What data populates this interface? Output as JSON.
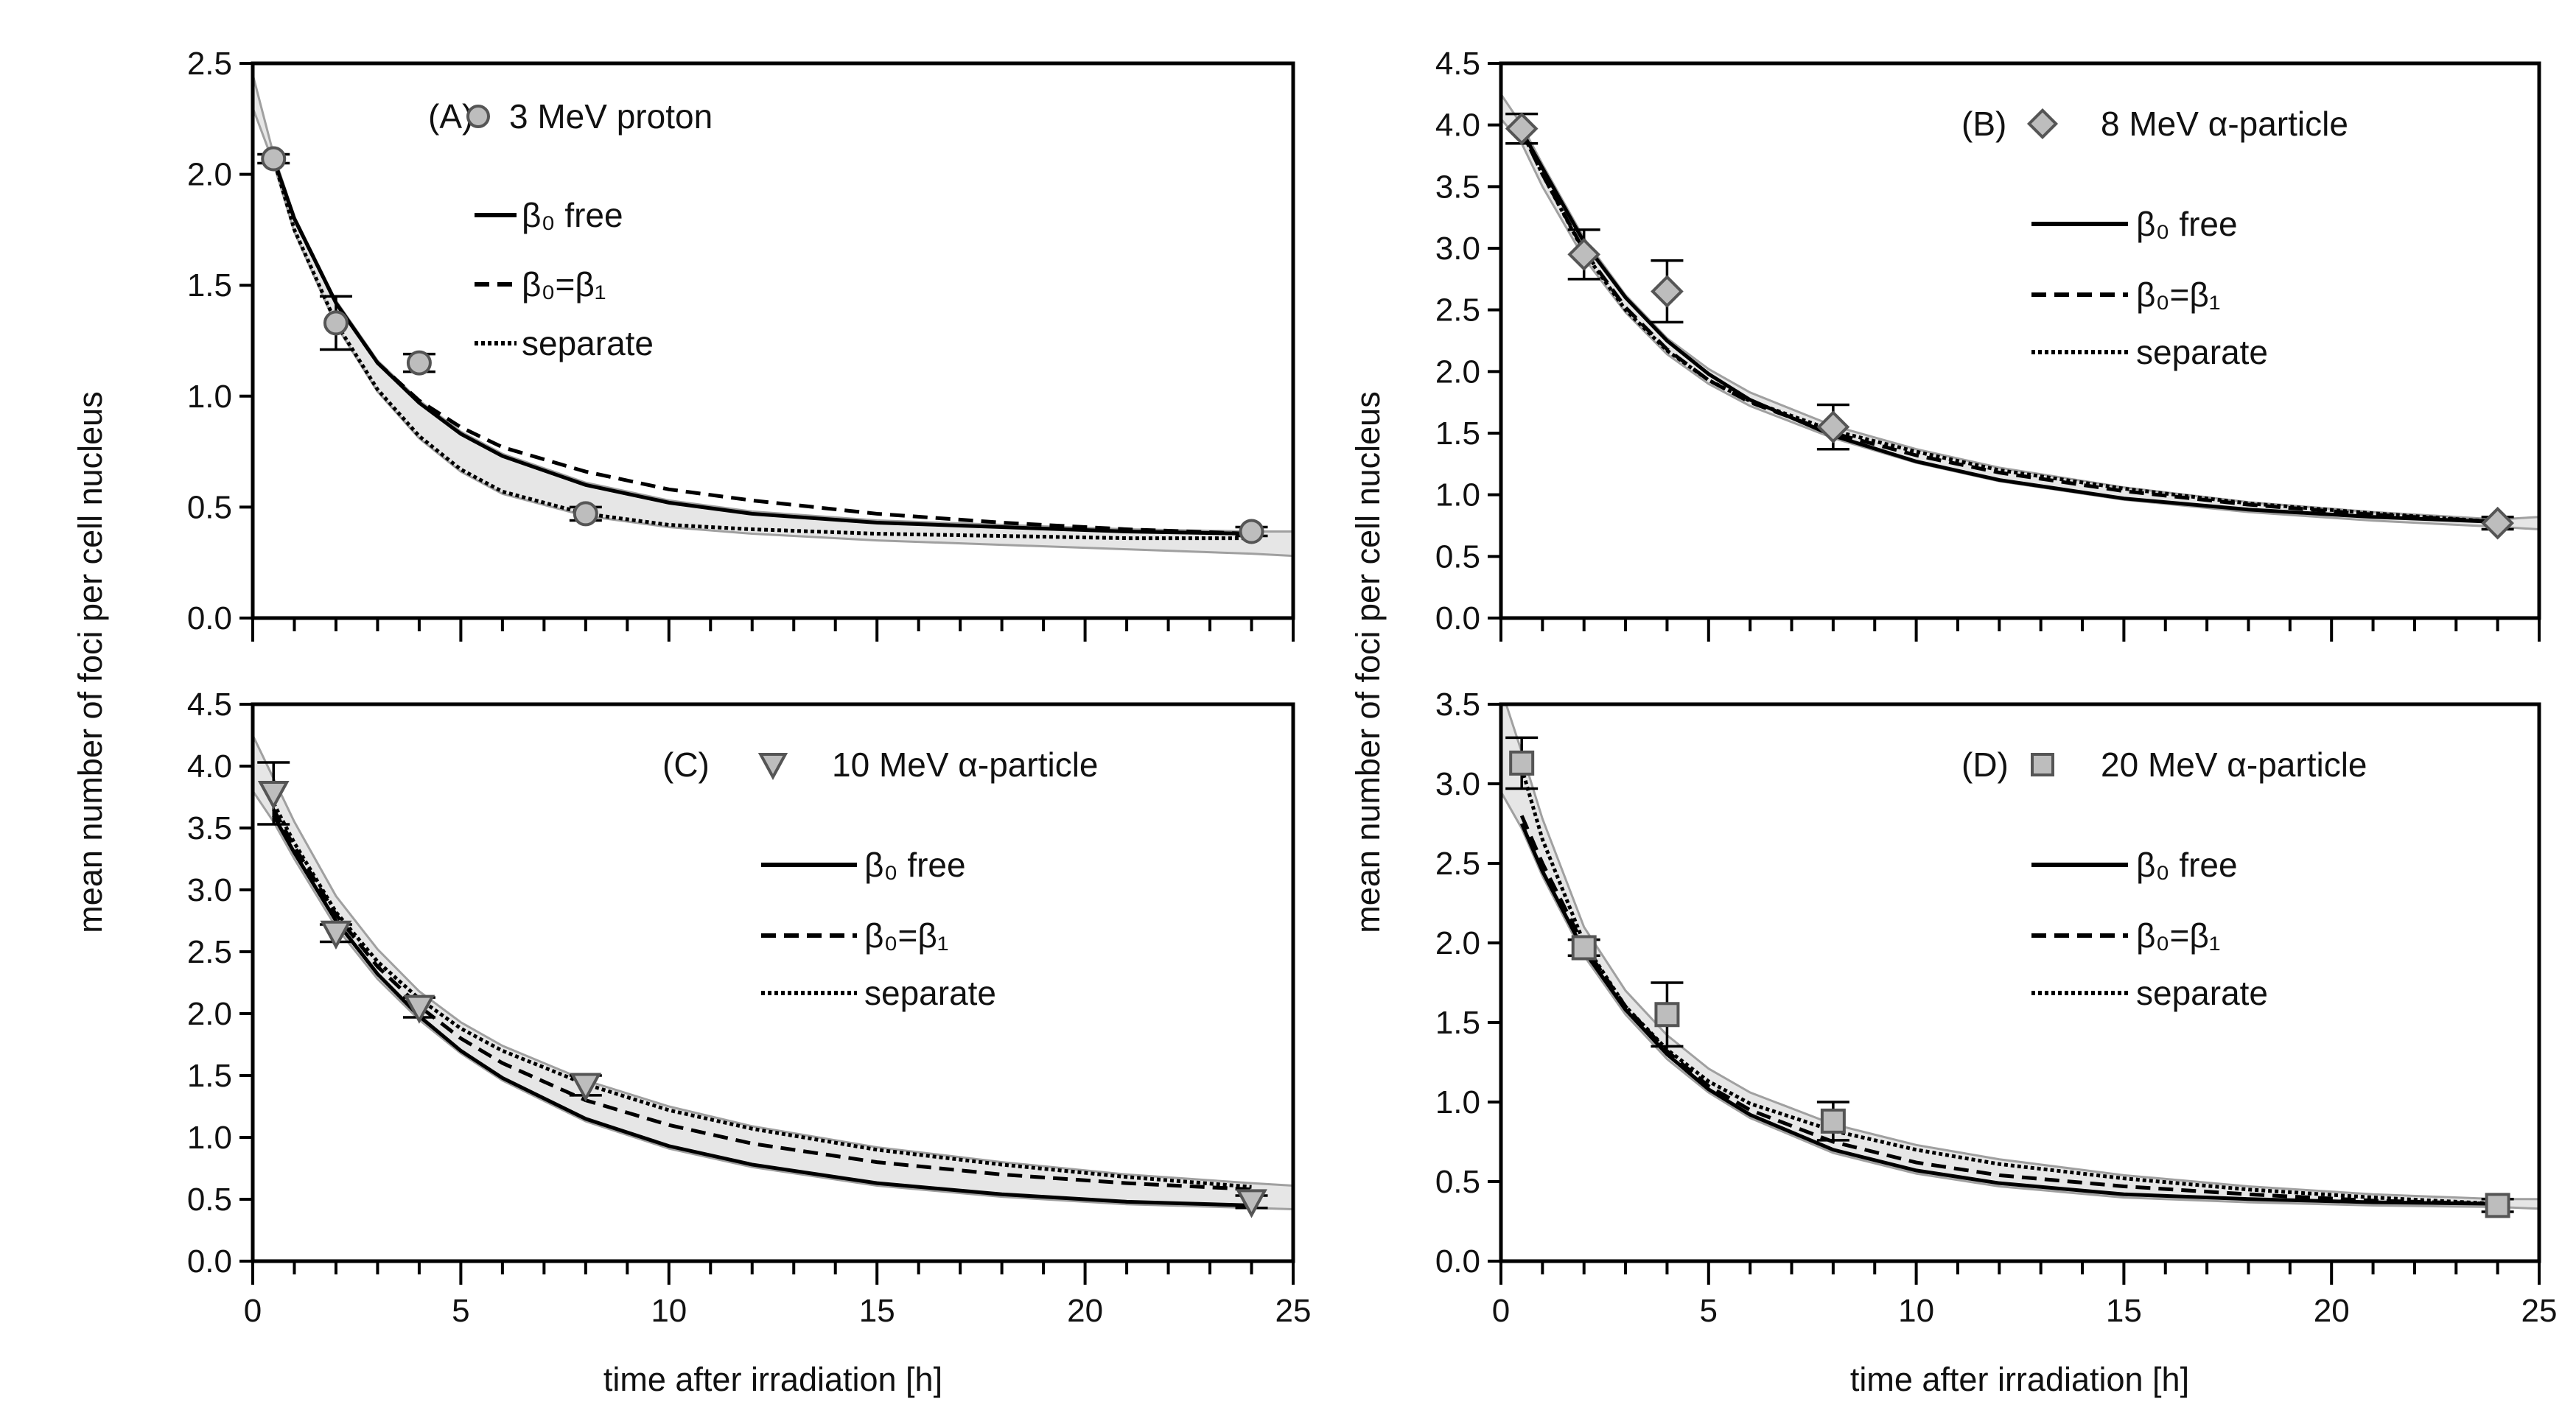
{
  "chart_data": [
    {
      "type": "line",
      "panel": "(A)",
      "series_label": "3 MeV proton",
      "marker": "circle",
      "xlim": [
        0,
        25
      ],
      "ylim": [
        0,
        2.5
      ],
      "xticks": [
        0,
        5,
        10,
        15,
        20,
        25
      ],
      "yticks": [
        "0.0",
        "0.5",
        "1.0",
        "1.5",
        "2.0",
        "2.5"
      ],
      "points": {
        "x": [
          0.5,
          2,
          4,
          8,
          24
        ],
        "y": [
          2.07,
          1.33,
          1.15,
          0.47,
          0.39
        ],
        "err": [
          0.02,
          0.12,
          0.04,
          0.03,
          0.02
        ]
      },
      "curve_x": [
        0.5,
        1,
        2,
        3,
        4,
        5,
        6,
        8,
        10,
        12,
        15,
        18,
        21,
        24
      ],
      "curves": {
        "beta0_free": [
          2.07,
          1.8,
          1.42,
          1.15,
          0.97,
          0.83,
          0.73,
          0.6,
          0.52,
          0.47,
          0.43,
          0.41,
          0.39,
          0.38
        ],
        "beta0_eq_beta1": [
          2.07,
          1.8,
          1.42,
          1.15,
          0.98,
          0.86,
          0.77,
          0.66,
          0.58,
          0.53,
          0.47,
          0.43,
          0.4,
          0.38
        ],
        "separate": [
          2.07,
          1.75,
          1.33,
          1.03,
          0.82,
          0.67,
          0.57,
          0.47,
          0.42,
          0.4,
          0.38,
          0.37,
          0.36,
          0.36
        ]
      },
      "band_x": [
        0,
        0.5,
        1,
        2,
        3,
        4,
        5,
        6,
        8,
        10,
        12,
        15,
        18,
        21,
        24,
        25
      ],
      "band_lower": [
        2.3,
        2.05,
        1.74,
        1.32,
        1.02,
        0.81,
        0.66,
        0.56,
        0.46,
        0.41,
        0.38,
        0.35,
        0.33,
        0.31,
        0.29,
        0.28
      ],
      "band_upper": [
        2.45,
        2.09,
        1.81,
        1.43,
        1.16,
        0.98,
        0.84,
        0.74,
        0.61,
        0.53,
        0.48,
        0.44,
        0.42,
        0.4,
        0.39,
        0.39
      ]
    },
    {
      "type": "line",
      "panel": "(B)",
      "series_label": "8 MeV α-particle",
      "marker": "diamond",
      "xlim": [
        0,
        25
      ],
      "ylim": [
        0,
        4.5
      ],
      "xticks": [
        0,
        5,
        10,
        15,
        20,
        25
      ],
      "yticks": [
        "0.0",
        "0.5",
        "1.0",
        "1.5",
        "2.0",
        "2.5",
        "3.0",
        "3.5",
        "4.0",
        "4.5"
      ],
      "points": {
        "x": [
          0.5,
          2,
          4,
          8,
          24
        ],
        "y": [
          3.97,
          2.95,
          2.65,
          1.55,
          0.77
        ],
        "err": [
          0.12,
          0.2,
          0.25,
          0.18,
          0.05
        ]
      },
      "curve_x": [
        0.5,
        1,
        2,
        3,
        4,
        5,
        6,
        8,
        10,
        12,
        15,
        18,
        21,
        24
      ],
      "curves": {
        "beta0_free": [
          3.95,
          3.65,
          3.05,
          2.6,
          2.25,
          1.98,
          1.77,
          1.48,
          1.27,
          1.12,
          0.97,
          0.88,
          0.82,
          0.78
        ],
        "beta0_eq_beta1": [
          3.95,
          3.6,
          2.98,
          2.52,
          2.18,
          1.93,
          1.75,
          1.5,
          1.32,
          1.18,
          1.03,
          0.92,
          0.84,
          0.78
        ],
        "separate": [
          3.95,
          3.6,
          2.97,
          2.5,
          2.17,
          1.93,
          1.76,
          1.52,
          1.35,
          1.2,
          1.05,
          0.93,
          0.85,
          0.78
        ]
      },
      "band_x": [
        0,
        0.5,
        1,
        2,
        3,
        4,
        5,
        6,
        8,
        10,
        12,
        15,
        18,
        21,
        24,
        25
      ],
      "band_lower": [
        4.05,
        3.85,
        3.5,
        2.92,
        2.48,
        2.14,
        1.9,
        1.72,
        1.46,
        1.26,
        1.11,
        0.96,
        0.86,
        0.79,
        0.74,
        0.72
      ],
      "band_upper": [
        4.25,
        4.0,
        3.68,
        3.08,
        2.62,
        2.27,
        2.02,
        1.83,
        1.56,
        1.37,
        1.22,
        1.06,
        0.94,
        0.86,
        0.8,
        0.82
      ]
    },
    {
      "type": "line",
      "panel": "(C)",
      "series_label": "10 MeV α-particle",
      "marker": "triangle-down",
      "xlim": [
        0,
        25
      ],
      "ylim": [
        0,
        4.5
      ],
      "xticks": [
        0,
        5,
        10,
        15,
        20,
        25
      ],
      "yticks": [
        "0.0",
        "0.5",
        "1.0",
        "1.5",
        "2.0",
        "2.5",
        "3.0",
        "3.5",
        "4.0",
        "4.5"
      ],
      "points": {
        "x": [
          0.5,
          2,
          4,
          8,
          24
        ],
        "y": [
          3.78,
          2.65,
          2.05,
          1.42,
          0.48
        ],
        "err": [
          0.25,
          0.07,
          0.08,
          0.08,
          0.05
        ]
      },
      "curve_x": [
        0.5,
        1,
        2,
        3,
        4,
        5,
        6,
        8,
        10,
        12,
        15,
        18,
        21,
        24
      ],
      "curves": {
        "beta0_free": [
          3.6,
          3.3,
          2.75,
          2.32,
          1.98,
          1.7,
          1.48,
          1.15,
          0.93,
          0.78,
          0.63,
          0.54,
          0.48,
          0.45
        ],
        "beta0_eq_beta1": [
          3.65,
          3.35,
          2.8,
          2.38,
          2.06,
          1.8,
          1.6,
          1.3,
          1.1,
          0.95,
          0.8,
          0.7,
          0.63,
          0.58
        ],
        "separate": [
          3.7,
          3.38,
          2.82,
          2.42,
          2.12,
          1.88,
          1.7,
          1.43,
          1.22,
          1.07,
          0.9,
          0.78,
          0.68,
          0.6
        ]
      },
      "band_x": [
        0,
        0.5,
        1,
        2,
        3,
        4,
        5,
        6,
        8,
        10,
        12,
        15,
        18,
        21,
        24,
        25
      ],
      "band_lower": [
        3.8,
        3.55,
        3.25,
        2.7,
        2.28,
        1.95,
        1.68,
        1.46,
        1.13,
        0.91,
        0.76,
        0.61,
        0.52,
        0.46,
        0.43,
        0.42
      ],
      "band_upper": [
        4.25,
        3.9,
        3.55,
        2.95,
        2.52,
        2.18,
        1.93,
        1.74,
        1.46,
        1.25,
        1.09,
        0.92,
        0.8,
        0.7,
        0.63,
        0.61
      ]
    },
    {
      "type": "line",
      "panel": "(D)",
      "series_label": "20 MeV α-particle",
      "marker": "square",
      "xlim": [
        0,
        25
      ],
      "ylim": [
        0,
        3.5
      ],
      "xticks": [
        0,
        5,
        10,
        15,
        20,
        25
      ],
      "yticks": [
        "0.0",
        "0.5",
        "1.0",
        "1.5",
        "2.0",
        "2.5",
        "3.0",
        "3.5"
      ],
      "points": {
        "x": [
          0.5,
          2,
          4,
          8,
          24
        ],
        "y": [
          3.13,
          1.97,
          1.55,
          0.88,
          0.35
        ],
        "err": [
          0.16,
          0.05,
          0.2,
          0.12,
          0.04
        ]
      },
      "curve_x": [
        0.5,
        1,
        2,
        3,
        4,
        5,
        6,
        8,
        10,
        12,
        15,
        18,
        21,
        24
      ],
      "curves": {
        "beta0_free": [
          2.75,
          2.45,
          1.95,
          1.58,
          1.3,
          1.08,
          0.92,
          0.7,
          0.57,
          0.49,
          0.42,
          0.39,
          0.37,
          0.36
        ],
        "beta0_eq_beta1": [
          2.8,
          2.5,
          1.98,
          1.6,
          1.32,
          1.1,
          0.95,
          0.75,
          0.62,
          0.54,
          0.47,
          0.42,
          0.38,
          0.36
        ],
        "separate": [
          3.1,
          2.65,
          2.0,
          1.6,
          1.33,
          1.13,
          0.99,
          0.82,
          0.7,
          0.61,
          0.52,
          0.45,
          0.4,
          0.36
        ]
      },
      "band_x": [
        0,
        0.5,
        1,
        2,
        3,
        4,
        5,
        6,
        8,
        10,
        12,
        15,
        18,
        21,
        24,
        25
      ],
      "band_lower": [
        2.95,
        2.72,
        2.42,
        1.92,
        1.55,
        1.27,
        1.06,
        0.9,
        0.68,
        0.55,
        0.47,
        0.4,
        0.37,
        0.35,
        0.34,
        0.33
      ],
      "band_upper": [
        3.6,
        3.2,
        2.78,
        2.1,
        1.7,
        1.42,
        1.21,
        1.06,
        0.86,
        0.73,
        0.64,
        0.54,
        0.47,
        0.42,
        0.39,
        0.39
      ]
    }
  ],
  "legend": {
    "beta0_free": "β₀ free",
    "beta0_eq_beta1": "β₀=β₁",
    "separate": "separate"
  },
  "xlabel": "time after irradiation [h]",
  "ylabel": "mean number of foci per cell nucleus",
  "colors": {
    "band": "#e6e6e6",
    "band_edge": "#a0a0a0",
    "marker_fill": "#bdbdbd",
    "line": "#000000"
  }
}
